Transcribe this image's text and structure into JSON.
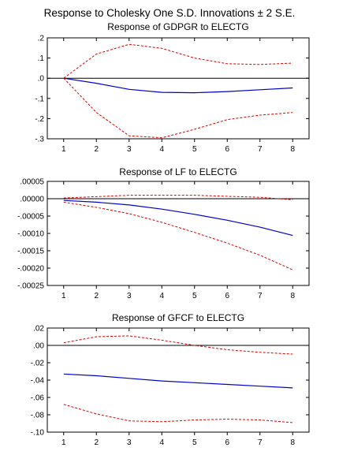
{
  "figure_title": "Response to Cholesky One S.D. Innovations ± 2 S.E.",
  "colors": {
    "response": "#0000cc",
    "band": "#dd0000",
    "zero_line": "#000000",
    "frame": "#000000"
  },
  "chart_data": [
    {
      "type": "line",
      "title": "Response of GDPGR to ELECTG",
      "x": [
        1,
        2,
        3,
        4,
        5,
        6,
        7,
        8
      ],
      "x_tick_labels": [
        "1",
        "2",
        "3",
        "4",
        "5",
        "6",
        "7",
        "8"
      ],
      "ylim": [
        -0.3,
        0.2
      ],
      "y_ticks": [
        0.2,
        0.1,
        0.0,
        -0.1,
        -0.2,
        -0.3
      ],
      "y_tick_labels": [
        ".2",
        ".1",
        ".0",
        "-.1",
        "-.2",
        "-.3"
      ],
      "series": [
        {
          "role": "response",
          "style": "solid",
          "values": [
            0.0,
            -0.025,
            -0.055,
            -0.07,
            -0.072,
            -0.066,
            -0.057,
            -0.048
          ]
        },
        {
          "role": "upper_band",
          "style": "dashed",
          "values": [
            0.0,
            0.12,
            0.168,
            0.148,
            0.1,
            0.072,
            0.068,
            0.075
          ]
        },
        {
          "role": "lower_band",
          "style": "dashed",
          "values": [
            0.0,
            -0.17,
            -0.285,
            -0.295,
            -0.253,
            -0.205,
            -0.183,
            -0.17
          ]
        }
      ],
      "zero_line": true,
      "grid": false
    },
    {
      "type": "line",
      "title": "Response of LF to ELECTG",
      "x": [
        1,
        2,
        3,
        4,
        5,
        6,
        7,
        8
      ],
      "x_tick_labels": [
        "1",
        "2",
        "3",
        "4",
        "5",
        "6",
        "7",
        "8"
      ],
      "ylim": [
        -0.00025,
        5e-05
      ],
      "y_ticks": [
        5e-05,
        0.0,
        -5e-05,
        -0.0001,
        -0.00015,
        -0.0002,
        -0.00025
      ],
      "y_tick_labels": [
        ".00005",
        ".00000",
        "-.00005",
        "-.00010",
        "-.00015",
        "-.00020",
        "-.00025"
      ],
      "series": [
        {
          "role": "response",
          "style": "solid",
          "values": [
            -5e-06,
            -1e-05,
            -1.8e-05,
            -3e-05,
            -4.5e-05,
            -6.2e-05,
            -8.2e-05,
            -0.000106
          ]
        },
        {
          "role": "upper_band",
          "style": "dashed",
          "values": [
            2e-06,
            6e-06,
            1e-05,
            1e-05,
            1e-05,
            7e-06,
            4e-06,
            -3e-06
          ]
        },
        {
          "role": "lower_band",
          "style": "dashed",
          "values": [
            -1e-05,
            -2.5e-05,
            -4.3e-05,
            -6.8e-05,
            -9.7e-05,
            -0.000128,
            -0.000163,
            -0.000205
          ]
        }
      ],
      "zero_line": true,
      "grid": false
    },
    {
      "type": "line",
      "title": "Response of GFCF to ELECTG",
      "x": [
        1,
        2,
        3,
        4,
        5,
        6,
        7,
        8
      ],
      "x_tick_labels": [
        "1",
        "2",
        "3",
        "4",
        "5",
        "6",
        "7",
        "8"
      ],
      "ylim": [
        -0.1,
        0.02
      ],
      "y_ticks": [
        0.02,
        0.0,
        -0.02,
        -0.04,
        -0.06,
        -0.08,
        -0.1
      ],
      "y_tick_labels": [
        ".02",
        ".00",
        "-.02",
        "-.04",
        "-.06",
        "-.08",
        "-.10"
      ],
      "series": [
        {
          "role": "response",
          "style": "solid",
          "values": [
            -0.033,
            -0.035,
            -0.038,
            -0.041,
            -0.043,
            -0.045,
            -0.047,
            -0.049
          ]
        },
        {
          "role": "upper_band",
          "style": "dashed",
          "values": [
            0.003,
            0.01,
            0.011,
            0.006,
            0.0,
            -0.005,
            -0.008,
            -0.01
          ]
        },
        {
          "role": "lower_band",
          "style": "dashed",
          "values": [
            -0.068,
            -0.079,
            -0.087,
            -0.088,
            -0.086,
            -0.085,
            -0.086,
            -0.089
          ]
        }
      ],
      "zero_line": true,
      "grid": false
    }
  ]
}
